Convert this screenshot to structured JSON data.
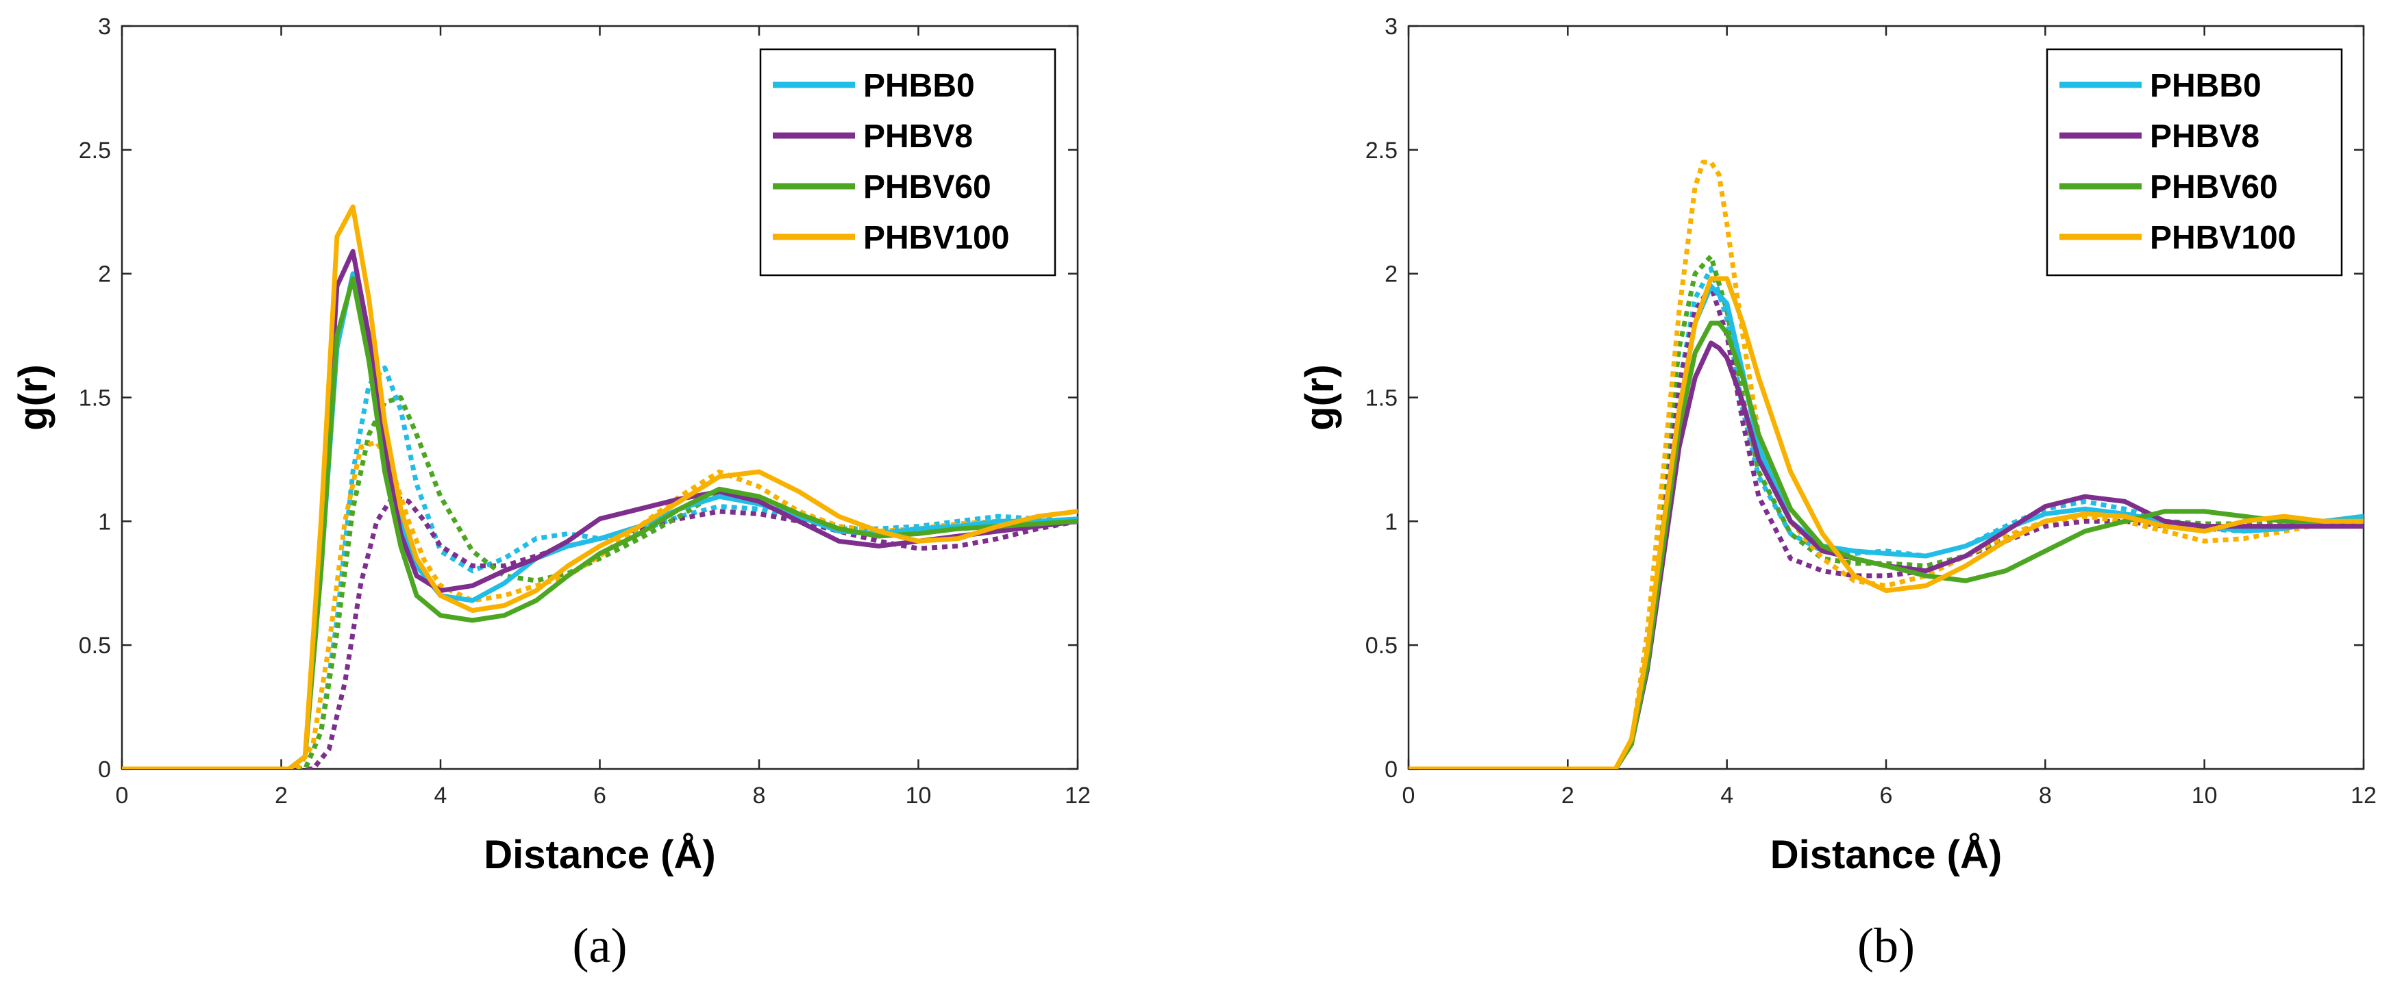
{
  "colors": {
    "PHBB0": "#21BDE6",
    "PHBV8": "#7E2F8E",
    "PHBV60": "#4DA621",
    "PHBV100": "#F9B100",
    "axis": "#262626"
  },
  "chart_data": [
    {
      "type": "line",
      "panel_label": "(a)",
      "xlabel": "Distance (Å)",
      "ylabel": "g(r)",
      "xlim": [
        0,
        12
      ],
      "ylim": [
        0,
        3
      ],
      "xticks": [
        "0",
        "2",
        "4",
        "6",
        "8",
        "10",
        "12"
      ],
      "yticks": [
        "0",
        "0.5",
        "1",
        "1.5",
        "2",
        "2.5",
        "3"
      ],
      "legend": {
        "position": "top-right",
        "entries": [
          "PHBB0",
          "PHBV8",
          "PHBV60",
          "PHBV100"
        ]
      },
      "series": [
        {
          "name": "PHBB0",
          "style": "solid",
          "x": [
            0,
            2.1,
            2.3,
            2.5,
            2.7,
            2.9,
            3.1,
            3.3,
            3.5,
            3.7,
            4.0,
            4.4,
            4.8,
            5.2,
            5.6,
            6.0,
            6.5,
            7.0,
            7.5,
            8.0,
            8.5,
            9.0,
            9.5,
            10.0,
            10.5,
            11.0,
            11.5,
            12.0
          ],
          "y": [
            0,
            0,
            0.05,
            0.8,
            1.7,
            2.0,
            1.7,
            1.3,
            1.0,
            0.82,
            0.7,
            0.68,
            0.75,
            0.85,
            0.9,
            0.93,
            0.98,
            1.05,
            1.1,
            1.07,
            1.02,
            0.96,
            0.95,
            0.97,
            0.98,
            1.0,
            1.0,
            1.01
          ]
        },
        {
          "name": "PHBV8",
          "style": "solid",
          "x": [
            0,
            2.1,
            2.3,
            2.5,
            2.7,
            2.9,
            3.1,
            3.3,
            3.5,
            3.7,
            4.0,
            4.4,
            4.8,
            5.2,
            5.6,
            6.0,
            6.5,
            7.0,
            7.5,
            8.0,
            8.5,
            9.0,
            9.5,
            10.0,
            10.5,
            11.0,
            11.5,
            12.0
          ],
          "y": [
            0,
            0,
            0.05,
            0.9,
            1.95,
            2.09,
            1.75,
            1.3,
            0.95,
            0.78,
            0.72,
            0.74,
            0.8,
            0.85,
            0.92,
            1.01,
            1.05,
            1.09,
            1.12,
            1.08,
            1.0,
            0.92,
            0.9,
            0.92,
            0.94,
            0.96,
            0.98,
            1.0
          ]
        },
        {
          "name": "PHBV60",
          "style": "solid",
          "x": [
            0,
            2.1,
            2.3,
            2.5,
            2.7,
            2.9,
            3.1,
            3.3,
            3.5,
            3.7,
            4.0,
            4.4,
            4.8,
            5.2,
            5.6,
            6.0,
            6.5,
            7.0,
            7.5,
            8.0,
            8.5,
            9.0,
            9.5,
            10.0,
            10.5,
            11.0,
            11.5,
            12.0
          ],
          "y": [
            0,
            0,
            0.05,
            0.8,
            1.75,
            1.98,
            1.65,
            1.2,
            0.9,
            0.7,
            0.62,
            0.6,
            0.62,
            0.68,
            0.78,
            0.87,
            0.95,
            1.05,
            1.13,
            1.1,
            1.03,
            0.97,
            0.94,
            0.95,
            0.97,
            0.98,
            0.99,
            1.0
          ]
        },
        {
          "name": "PHBV100",
          "style": "solid",
          "x": [
            0,
            2.1,
            2.3,
            2.5,
            2.7,
            2.9,
            3.1,
            3.3,
            3.5,
            3.7,
            4.0,
            4.4,
            4.8,
            5.2,
            5.6,
            6.0,
            6.5,
            7.0,
            7.5,
            8.0,
            8.5,
            9.0,
            9.5,
            10.0,
            10.5,
            11.0,
            11.5,
            12.0
          ],
          "y": [
            0,
            0,
            0.05,
            1.0,
            2.15,
            2.27,
            1.9,
            1.4,
            1.05,
            0.85,
            0.7,
            0.64,
            0.66,
            0.72,
            0.82,
            0.9,
            0.98,
            1.08,
            1.18,
            1.2,
            1.12,
            1.02,
            0.96,
            0.92,
            0.93,
            0.98,
            1.02,
            1.04
          ]
        },
        {
          "name": "PHBB0",
          "style": "dotted",
          "x": [
            0,
            2.3,
            2.5,
            2.7,
            2.9,
            3.1,
            3.3,
            3.5,
            3.7,
            4.0,
            4.4,
            4.8,
            5.2,
            5.6,
            6.0,
            6.5,
            7.0,
            7.5,
            8.0,
            8.5,
            9.0,
            9.5,
            10.0,
            10.5,
            11.0,
            11.5,
            12.0
          ],
          "y": [
            0,
            0,
            0.15,
            0.6,
            1.2,
            1.55,
            1.62,
            1.45,
            1.15,
            0.88,
            0.8,
            0.85,
            0.93,
            0.95,
            0.93,
            0.96,
            1.02,
            1.06,
            1.05,
            1.0,
            0.97,
            0.97,
            0.98,
            1.0,
            1.02,
            1.01,
            1.0
          ]
        },
        {
          "name": "PHBV8",
          "style": "dotted",
          "x": [
            0,
            2.4,
            2.6,
            2.8,
            3.0,
            3.2,
            3.4,
            3.6,
            3.8,
            4.0,
            4.4,
            4.8,
            5.2,
            5.6,
            6.0,
            6.5,
            7.0,
            7.5,
            8.0,
            8.5,
            9.0,
            9.5,
            10.0,
            10.5,
            11.0,
            11.5,
            12.0
          ],
          "y": [
            0,
            0,
            0.08,
            0.35,
            0.75,
            1.0,
            1.1,
            1.08,
            1.0,
            0.9,
            0.82,
            0.82,
            0.86,
            0.9,
            0.93,
            0.97,
            1.01,
            1.04,
            1.03,
            1.0,
            0.96,
            0.92,
            0.89,
            0.9,
            0.93,
            0.97,
            1.0
          ]
        },
        {
          "name": "PHBV60",
          "style": "dotted",
          "x": [
            0,
            2.3,
            2.5,
            2.7,
            2.9,
            3.1,
            3.3,
            3.5,
            3.7,
            4.0,
            4.4,
            4.8,
            5.2,
            5.6,
            6.0,
            6.5,
            7.0,
            7.5,
            8.0,
            8.5,
            9.0,
            9.5,
            10.0,
            10.5,
            11.0,
            11.5,
            12.0
          ],
          "y": [
            0,
            0,
            0.15,
            0.55,
            1.05,
            1.35,
            1.48,
            1.5,
            1.35,
            1.1,
            0.88,
            0.78,
            0.76,
            0.79,
            0.85,
            0.93,
            1.02,
            1.12,
            1.1,
            1.03,
            0.98,
            0.96,
            0.96,
            0.98,
            0.99,
            1.0,
            1.0
          ]
        },
        {
          "name": "PHBV100",
          "style": "dotted",
          "x": [
            0,
            2.2,
            2.4,
            2.6,
            2.8,
            3.0,
            3.2,
            3.4,
            3.6,
            3.8,
            4.0,
            4.4,
            4.8,
            5.2,
            5.6,
            6.0,
            6.5,
            7.0,
            7.5,
            8.0,
            8.5,
            9.0,
            9.5,
            10.0,
            10.5,
            11.0,
            11.5,
            12.0
          ],
          "y": [
            0,
            0,
            0.1,
            0.5,
            1.0,
            1.3,
            1.32,
            1.2,
            1.0,
            0.84,
            0.74,
            0.68,
            0.7,
            0.74,
            0.78,
            0.86,
            0.98,
            1.1,
            1.2,
            1.14,
            1.04,
            0.98,
            0.96,
            0.97,
            0.99,
            1.0,
            1.0,
            1.0
          ]
        }
      ]
    },
    {
      "type": "line",
      "panel_label": "(b)",
      "xlabel": "Distance (Å)",
      "ylabel": "g(r)",
      "xlim": [
        0,
        12
      ],
      "ylim": [
        0,
        3
      ],
      "xticks": [
        "0",
        "2",
        "4",
        "6",
        "8",
        "10",
        "12"
      ],
      "yticks": [
        "0",
        "0.5",
        "1",
        "1.5",
        "2",
        "2.5",
        "3"
      ],
      "legend": {
        "position": "top-right",
        "entries": [
          "PHBB0",
          "PHBV8",
          "PHBV60",
          "PHBV100"
        ]
      },
      "series": [
        {
          "name": "PHBB0",
          "style": "solid",
          "x": [
            0,
            2.6,
            2.8,
            3.0,
            3.2,
            3.4,
            3.6,
            3.8,
            4.0,
            4.2,
            4.4,
            4.8,
            5.2,
            5.6,
            6.0,
            6.5,
            7.0,
            7.5,
            8.0,
            8.5,
            9.0,
            9.5,
            10.0,
            10.5,
            11.0,
            11.5,
            12.0
          ],
          "y": [
            0,
            0,
            0.1,
            0.45,
            0.95,
            1.45,
            1.8,
            1.95,
            1.88,
            1.6,
            1.3,
            1.0,
            0.9,
            0.88,
            0.87,
            0.86,
            0.9,
            0.97,
            1.03,
            1.05,
            1.03,
            1.0,
            0.98,
            0.96,
            0.97,
            1.0,
            1.02
          ]
        },
        {
          "name": "PHBV8",
          "style": "solid",
          "x": [
            0,
            2.6,
            2.8,
            3.0,
            3.2,
            3.4,
            3.6,
            3.8,
            3.9,
            4.0,
            4.2,
            4.4,
            4.8,
            5.2,
            5.6,
            6.0,
            6.5,
            7.0,
            7.5,
            8.0,
            8.5,
            9.0,
            9.5,
            10.0,
            10.5,
            11.0,
            11.5,
            12.0
          ],
          "y": [
            0,
            0,
            0.1,
            0.4,
            0.85,
            1.3,
            1.58,
            1.72,
            1.7,
            1.66,
            1.48,
            1.25,
            1.0,
            0.88,
            0.85,
            0.82,
            0.8,
            0.86,
            0.96,
            1.06,
            1.1,
            1.08,
            1.0,
            0.98,
            0.98,
            0.98,
            0.98,
            0.98
          ]
        },
        {
          "name": "PHBV60",
          "style": "solid",
          "x": [
            0,
            2.6,
            2.8,
            3.0,
            3.2,
            3.4,
            3.6,
            3.8,
            3.9,
            4.0,
            4.2,
            4.4,
            4.8,
            5.2,
            5.6,
            6.0,
            6.5,
            7.0,
            7.5,
            8.0,
            8.5,
            9.0,
            9.5,
            10.0,
            10.5,
            11.0,
            11.5,
            12.0
          ],
          "y": [
            0,
            0,
            0.1,
            0.42,
            0.9,
            1.38,
            1.68,
            1.8,
            1.8,
            1.76,
            1.58,
            1.35,
            1.05,
            0.9,
            0.85,
            0.82,
            0.78,
            0.76,
            0.8,
            0.88,
            0.96,
            1.0,
            1.04,
            1.04,
            1.02,
            1.0,
            1.0,
            1.0
          ]
        },
        {
          "name": "PHBV100",
          "style": "solid",
          "x": [
            0,
            2.6,
            2.8,
            3.0,
            3.2,
            3.4,
            3.6,
            3.8,
            4.0,
            4.2,
            4.4,
            4.8,
            5.2,
            5.6,
            6.0,
            6.5,
            7.0,
            7.5,
            8.0,
            8.5,
            9.0,
            9.5,
            10.0,
            10.5,
            11.0,
            11.5,
            12.0
          ],
          "y": [
            0,
            0,
            0.12,
            0.48,
            0.98,
            1.45,
            1.8,
            1.98,
            1.98,
            1.8,
            1.58,
            1.2,
            0.95,
            0.78,
            0.72,
            0.74,
            0.82,
            0.92,
            1.0,
            1.03,
            1.02,
            0.98,
            0.96,
            1.0,
            1.02,
            1.0,
            1.0
          ]
        },
        {
          "name": "PHBB0",
          "style": "dotted",
          "x": [
            0,
            2.6,
            2.8,
            3.0,
            3.2,
            3.4,
            3.6,
            3.8,
            4.0,
            4.2,
            4.4,
            4.8,
            5.2,
            5.6,
            6.0,
            6.5,
            7.0,
            7.5,
            8.0,
            8.5,
            9.0,
            9.5,
            10.0,
            10.5,
            11.0,
            11.5,
            12.0
          ],
          "y": [
            0,
            0,
            0.1,
            0.5,
            1.05,
            1.55,
            1.9,
            2.02,
            1.82,
            1.45,
            1.18,
            0.95,
            0.88,
            0.87,
            0.88,
            0.86,
            0.9,
            0.98,
            1.05,
            1.08,
            1.05,
            1.0,
            0.97,
            0.96,
            0.98,
            1.0,
            1.02
          ]
        },
        {
          "name": "PHBV8",
          "style": "dotted",
          "x": [
            0,
            2.6,
            2.8,
            3.0,
            3.2,
            3.4,
            3.6,
            3.8,
            4.0,
            4.2,
            4.4,
            4.8,
            5.2,
            5.6,
            6.0,
            6.5,
            7.0,
            7.5,
            8.0,
            8.5,
            9.0,
            9.5,
            10.0,
            10.5,
            11.0,
            11.5,
            12.0
          ],
          "y": [
            0,
            0,
            0.1,
            0.5,
            1.05,
            1.55,
            1.85,
            1.95,
            1.75,
            1.4,
            1.1,
            0.85,
            0.8,
            0.78,
            0.78,
            0.8,
            0.86,
            0.92,
            0.98,
            1.0,
            1.0,
            0.98,
            0.97,
            0.97,
            0.98,
            0.99,
            1.0
          ]
        },
        {
          "name": "PHBV60",
          "style": "dotted",
          "x": [
            0,
            2.6,
            2.8,
            3.0,
            3.2,
            3.4,
            3.6,
            3.8,
            4.0,
            4.2,
            4.4,
            4.8,
            5.2,
            5.6,
            6.0,
            6.5,
            7.0,
            7.5,
            8.0,
            8.5,
            9.0,
            9.5,
            10.0,
            10.5,
            11.0,
            11.5,
            12.0
          ],
          "y": [
            0,
            0,
            0.1,
            0.55,
            1.15,
            1.7,
            2.0,
            2.07,
            1.85,
            1.5,
            1.2,
            0.95,
            0.85,
            0.83,
            0.83,
            0.82,
            0.86,
            0.93,
            1.0,
            1.03,
            1.02,
            1.0,
            0.99,
            0.99,
            1.0,
            1.0,
            1.01
          ]
        },
        {
          "name": "PHBV100",
          "style": "dotted",
          "x": [
            0,
            2.6,
            2.8,
            3.0,
            3.2,
            3.4,
            3.6,
            3.7,
            3.8,
            3.9,
            4.0,
            4.2,
            4.4,
            4.8,
            5.2,
            5.6,
            6.0,
            6.5,
            7.0,
            7.5,
            8.0,
            8.5,
            9.0,
            9.5,
            10.0,
            10.5,
            11.0,
            11.5,
            12.0
          ],
          "y": [
            0,
            0,
            0.1,
            0.55,
            1.2,
            1.85,
            2.35,
            2.45,
            2.45,
            2.4,
            2.2,
            1.75,
            1.35,
            1.0,
            0.85,
            0.76,
            0.74,
            0.78,
            0.86,
            0.94,
            1.0,
            1.02,
            1.0,
            0.96,
            0.92,
            0.93,
            0.96,
            0.99,
            1.0
          ]
        }
      ]
    }
  ]
}
